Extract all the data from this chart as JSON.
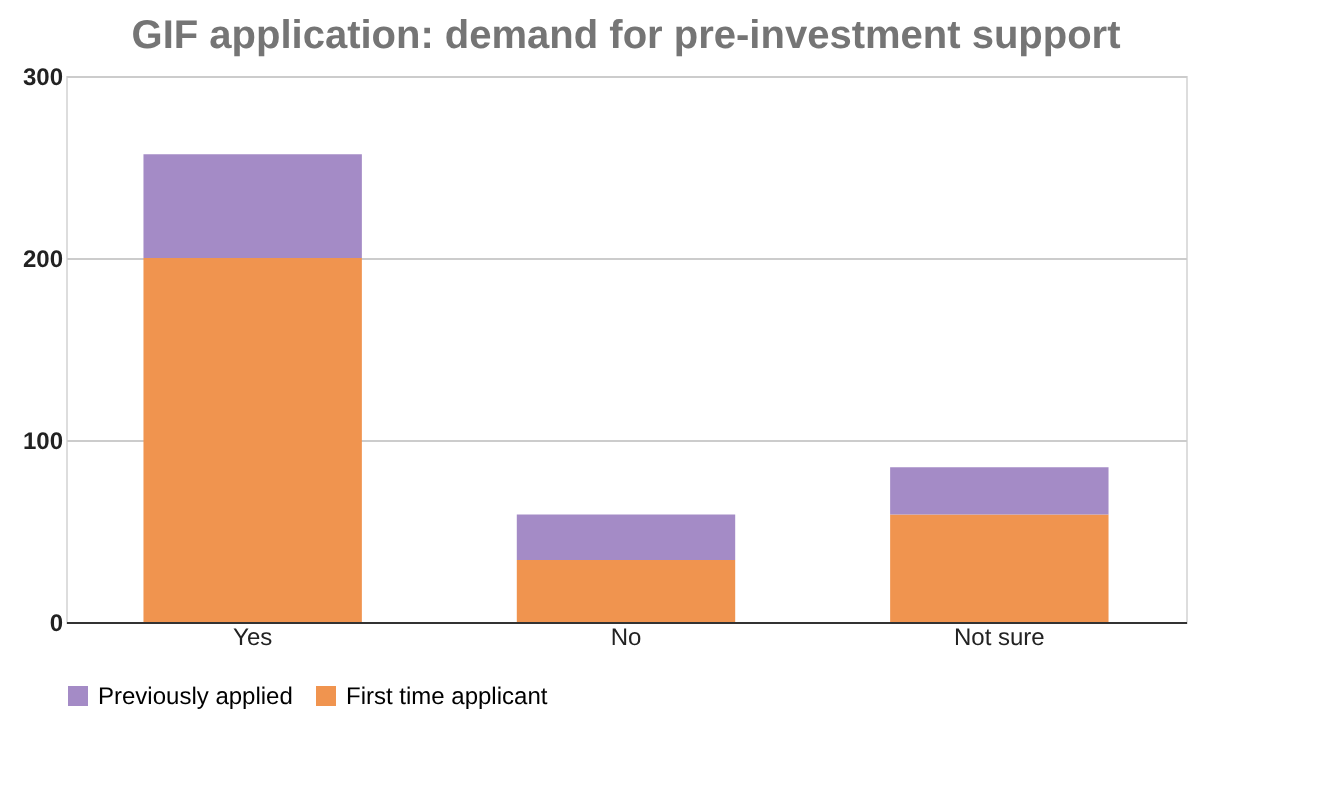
{
  "chart_data": {
    "type": "bar",
    "title": "GIF application: demand for pre-investment support",
    "categories": [
      "Yes",
      "No",
      "Not sure"
    ],
    "stacked": true,
    "series": [
      {
        "name": "First time applicant",
        "color": "#f0944f",
        "values": [
          200,
          34,
          59
        ]
      },
      {
        "name": "Previously applied",
        "color": "#a48bc6",
        "values": [
          57,
          25,
          26
        ]
      }
    ],
    "ylim": [
      0,
      300
    ],
    "yticks": [
      0,
      100,
      200,
      300
    ],
    "grid": "y",
    "legend": "bottom"
  }
}
